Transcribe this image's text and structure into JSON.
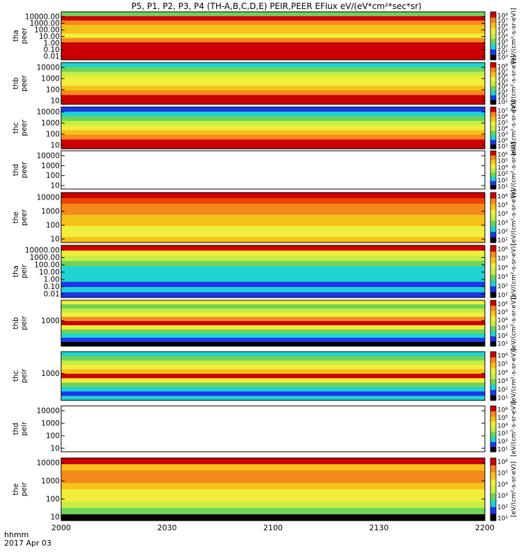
{
  "title": "P5, P1, P2, P3, P4 (TH-A,B,C,D,E) PEIR,PEER EFlux eV/(eV*cm²*sec*sr)",
  "time_label": {
    "unit": "hhmm",
    "date": "2017 Apr 03"
  },
  "colorbar_unit_label": "[eV/(cm²-s-sr-eV)]",
  "colors": {
    "red": "#cc0000",
    "orange_red": "#ee4400",
    "orange": "#f58a1c",
    "yellow_orange": "#f5c21a",
    "yellow": "#f0ee3c",
    "yellow_green": "#c9ec46",
    "green": "#6ed35a",
    "cyan": "#20d3d3",
    "blue": "#1f36ea",
    "black": "#000000"
  },
  "chart_data": {
    "type": "heatmap",
    "x_ticks": [
      "2000",
      "2030",
      "2100",
      "2130",
      "2200"
    ],
    "xlim": [
      "20:00",
      "22:00"
    ],
    "panels": [
      {
        "probe_label": "tha",
        "species_label": "peer",
        "y_ticks": [
          "10000.00",
          "1000.00",
          "100.00",
          "10.00",
          "1.00",
          "0.10",
          "0.01"
        ],
        "ylim": [
          0.01,
          30000
        ],
        "yscale": "log",
        "has_data": true,
        "colorbar_ticks": [
          "10⁸",
          "10⁷",
          "10⁶",
          "10⁵",
          "10⁴",
          "10³",
          "10²",
          "10¹",
          "10⁰"
        ],
        "bands": [
          "green",
          "red",
          "orange",
          "yellow_orange",
          "yellow_orange",
          "yellow",
          "orange",
          "red",
          "red",
          "red",
          "red"
        ]
      },
      {
        "probe_label": "thb",
        "species_label": "peer",
        "y_ticks": [
          "10000",
          "1000",
          "100",
          "10"
        ],
        "ylim": [
          5,
          15000
        ],
        "yscale": "log",
        "has_data": true,
        "colorbar_ticks": [
          "10⁸",
          "10⁷",
          "10⁶",
          "10⁵",
          "10⁴",
          "10³",
          "10²",
          "10¹"
        ],
        "bands": [
          "cyan",
          "green",
          "yellow_green",
          "yellow",
          "yellow",
          "yellow_orange",
          "orange",
          "red",
          "red"
        ]
      },
      {
        "probe_label": "thc",
        "species_label": "peer",
        "y_ticks": [
          "10000",
          "1000",
          "100",
          "10"
        ],
        "ylim": [
          5,
          15000
        ],
        "yscale": "log",
        "has_data": true,
        "colorbar_ticks": [
          "10⁷",
          "10⁶",
          "10⁵",
          "10⁴",
          "10³",
          "10²",
          "10¹"
        ],
        "bands": [
          "blue",
          "cyan",
          "green",
          "yellow_green",
          "yellow",
          "yellow_orange",
          "orange",
          "red",
          "red"
        ]
      },
      {
        "probe_label": "thd",
        "species_label": "peer",
        "y_ticks": [
          "10000",
          "1000",
          "100",
          "10"
        ],
        "ylim": [
          5,
          15000
        ],
        "yscale": "log",
        "has_data": false,
        "colorbar_ticks": [
          "10⁶",
          "10⁵",
          "10⁴",
          "10³",
          "10²",
          "10¹"
        ],
        "bands": []
      },
      {
        "probe_label": "the",
        "species_label": "peer",
        "y_ticks": [
          "10000",
          "1000",
          "100",
          "10"
        ],
        "ylim": [
          5,
          30000
        ],
        "yscale": "log",
        "has_data": true,
        "colorbar_ticks": [
          "10⁶",
          "10⁵",
          "10⁴",
          "10³",
          "10²",
          "10¹"
        ],
        "bands": [
          "red",
          "orange_red",
          "orange",
          "orange",
          "yellow_orange",
          "yellow_orange",
          "yellow",
          "yellow",
          "yellow_orange"
        ]
      },
      {
        "probe_label": "tha",
        "species_label": "peir",
        "y_ticks": [
          "10000.00",
          "1000.00",
          "100.00",
          "10.00",
          "1.00",
          "0.10",
          "0.01"
        ],
        "ylim": [
          0.01,
          30000
        ],
        "yscale": "log",
        "has_data": true,
        "colorbar_ticks": [
          "10⁶",
          "10⁵",
          "10⁴",
          "10³",
          "10²",
          "10¹"
        ],
        "bands": [
          "red",
          "yellow",
          "yellow_green",
          "green",
          "cyan",
          "cyan",
          "cyan",
          "blue",
          "cyan",
          "blue"
        ]
      },
      {
        "probe_label": "thb",
        "species_label": "peir",
        "y_ticks": [
          "1000"
        ],
        "ylim": [
          5,
          30000
        ],
        "yscale": "log",
        "has_data": true,
        "colorbar_ticks": [
          "10⁶",
          "10⁵",
          "10⁴",
          "10³",
          "10²",
          "10¹"
        ],
        "bands": [
          "yellow",
          "green",
          "yellow_green",
          "yellow",
          "orange",
          "red",
          "yellow",
          "green",
          "cyan",
          "blue",
          "black"
        ]
      },
      {
        "probe_label": "thc",
        "species_label": "peir",
        "y_ticks": [
          "1000"
        ],
        "ylim": [
          5,
          30000
        ],
        "yscale": "log",
        "has_data": true,
        "colorbar_ticks": [
          "10⁶",
          "10⁵",
          "10⁴",
          "10³",
          "10²",
          "10¹"
        ],
        "bands": [
          "cyan",
          "green",
          "yellow_green",
          "yellow",
          "yellow_orange",
          "red",
          "yellow",
          "green",
          "cyan",
          "blue",
          "cyan"
        ]
      },
      {
        "probe_label": "thd",
        "species_label": "peir",
        "y_ticks": [
          "10000",
          "1000",
          "100",
          "10"
        ],
        "ylim": [
          5,
          15000
        ],
        "yscale": "log",
        "has_data": false,
        "colorbar_ticks": [
          "10⁶",
          "10⁵",
          "10⁴",
          "10³",
          "10²",
          "10¹"
        ],
        "bands": []
      },
      {
        "probe_label": "the",
        "species_label": "peir",
        "y_ticks": [
          "10000",
          "1000",
          "100",
          "10"
        ],
        "ylim": [
          5,
          30000
        ],
        "yscale": "log",
        "has_data": true,
        "colorbar_ticks": [
          "10⁶",
          "10⁵",
          "10⁴",
          "10³",
          "10²",
          "10¹"
        ],
        "bands": [
          "red",
          "yellow_orange",
          "orange",
          "orange",
          "yellow_orange",
          "yellow",
          "yellow",
          "yellow_green",
          "green",
          "black"
        ]
      }
    ]
  }
}
